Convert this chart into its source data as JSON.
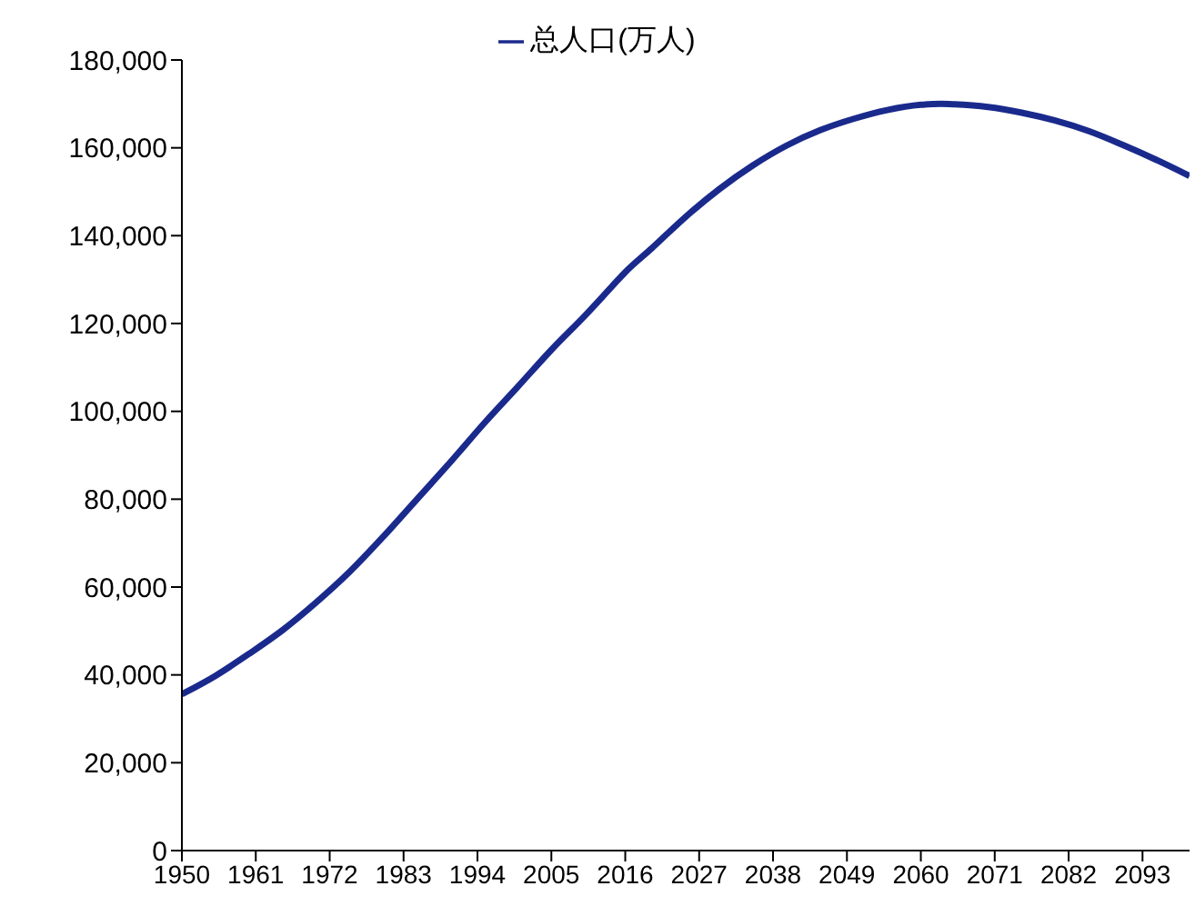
{
  "chart_data": {
    "type": "line",
    "legend": "top",
    "marker": "none",
    "line_style": "solid",
    "x": [
      1950,
      1955,
      1960,
      1965,
      1970,
      1975,
      1980,
      1985,
      1990,
      1995,
      2000,
      2005,
      2010,
      2014,
      2016,
      2020,
      2025,
      2030,
      2035,
      2040,
      2045,
      2050,
      2055,
      2060,
      2063,
      2065,
      2070,
      2075,
      2080,
      2085,
      2090,
      2095,
      2100
    ],
    "xlim": [
      1950,
      2100
    ],
    "xticks": [
      1950,
      1961,
      1972,
      1983,
      1994,
      2005,
      2016,
      2027,
      2038,
      2049,
      2060,
      2071,
      2082,
      2093
    ],
    "ylim": [
      0,
      180000
    ],
    "yticks": [
      {
        "value": 0,
        "label": "0"
      },
      {
        "value": 20000,
        "label": "20,000"
      },
      {
        "value": 40000,
        "label": "40,000"
      },
      {
        "value": 60000,
        "label": "60,000"
      },
      {
        "value": 80000,
        "label": "80,000"
      },
      {
        "value": 100000,
        "label": "100,000"
      },
      {
        "value": 120000,
        "label": "120,000"
      },
      {
        "value": 140000,
        "label": "140,000"
      },
      {
        "value": 160000,
        "label": "160,000"
      },
      {
        "value": 180000,
        "label": "180,000"
      }
    ],
    "series": [
      {
        "name": "总人口(万人)",
        "color": "#1a2a8c",
        "values": [
          35600,
          39800,
          44800,
          50200,
          56500,
          63500,
          71500,
          80000,
          88500,
          97300,
          105600,
          114000,
          121800,
          128400,
          131700,
          137200,
          144300,
          150600,
          156000,
          160500,
          164000,
          166600,
          168600,
          169800,
          170000,
          169900,
          169300,
          168000,
          166200,
          163800,
          160700,
          157300,
          153600
        ]
      }
    ]
  }
}
